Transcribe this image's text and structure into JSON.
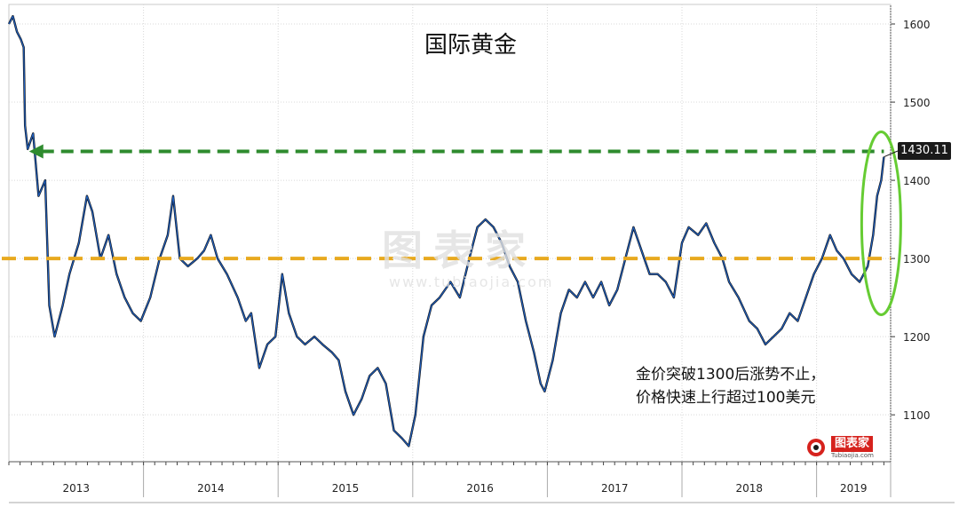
{
  "chart_data": {
    "type": "line",
    "title": "国际黄金",
    "y_ticks": [
      1100,
      1200,
      1300,
      1400,
      1500,
      1600
    ],
    "ylim": [
      1040,
      1625
    ],
    "x_year_labels": [
      "2013",
      "2014",
      "2015",
      "2016",
      "2017",
      "2018",
      "2019"
    ],
    "xlim": [
      2013.0,
      2019.55
    ],
    "grid": true,
    "last_value_label": "1430.11",
    "reference_lines": [
      {
        "name": "support",
        "value": 1300,
        "color": "#e8a91f",
        "style": "dashed"
      },
      {
        "name": "arrow",
        "value": 1437,
        "color": "#2e8b2e",
        "style": "dashed-arrow"
      }
    ],
    "highlight_color": "#66cc33",
    "series": [
      {
        "color": "#1f5fbf",
        "points": [
          [
            2013.0,
            1600
          ],
          [
            2013.03,
            1610
          ],
          [
            2013.06,
            1590
          ],
          [
            2013.09,
            1580
          ],
          [
            2013.11,
            1570
          ],
          [
            2013.12,
            1470
          ],
          [
            2013.14,
            1440
          ],
          [
            2013.18,
            1460
          ],
          [
            2013.22,
            1380
          ],
          [
            2013.27,
            1400
          ],
          [
            2013.3,
            1240
          ],
          [
            2013.34,
            1200
          ],
          [
            2013.4,
            1240
          ],
          [
            2013.45,
            1280
          ],
          [
            2013.52,
            1320
          ],
          [
            2013.58,
            1380
          ],
          [
            2013.62,
            1360
          ],
          [
            2013.68,
            1300
          ],
          [
            2013.74,
            1330
          ],
          [
            2013.8,
            1280
          ],
          [
            2013.86,
            1250
          ],
          [
            2013.92,
            1230
          ],
          [
            2013.98,
            1220
          ],
          [
            2014.05,
            1250
          ],
          [
            2014.12,
            1300
          ],
          [
            2014.18,
            1330
          ],
          [
            2014.22,
            1380
          ],
          [
            2014.27,
            1300
          ],
          [
            2014.33,
            1290
          ],
          [
            2014.4,
            1300
          ],
          [
            2014.45,
            1310
          ],
          [
            2014.5,
            1330
          ],
          [
            2014.55,
            1300
          ],
          [
            2014.62,
            1280
          ],
          [
            2014.7,
            1250
          ],
          [
            2014.76,
            1220
          ],
          [
            2014.8,
            1230
          ],
          [
            2014.86,
            1160
          ],
          [
            2014.92,
            1190
          ],
          [
            2014.98,
            1200
          ],
          [
            2015.03,
            1280
          ],
          [
            2015.08,
            1230
          ],
          [
            2015.14,
            1200
          ],
          [
            2015.2,
            1190
          ],
          [
            2015.27,
            1200
          ],
          [
            2015.33,
            1190
          ],
          [
            2015.4,
            1180
          ],
          [
            2015.45,
            1170
          ],
          [
            2015.5,
            1130
          ],
          [
            2015.56,
            1100
          ],
          [
            2015.62,
            1120
          ],
          [
            2015.68,
            1150
          ],
          [
            2015.74,
            1160
          ],
          [
            2015.8,
            1140
          ],
          [
            2015.86,
            1080
          ],
          [
            2015.92,
            1070
          ],
          [
            2015.97,
            1060
          ],
          [
            2016.02,
            1100
          ],
          [
            2016.08,
            1200
          ],
          [
            2016.14,
            1240
          ],
          [
            2016.2,
            1250
          ],
          [
            2016.28,
            1270
          ],
          [
            2016.35,
            1250
          ],
          [
            2016.42,
            1300
          ],
          [
            2016.48,
            1340
          ],
          [
            2016.54,
            1350
          ],
          [
            2016.6,
            1340
          ],
          [
            2016.66,
            1320
          ],
          [
            2016.72,
            1290
          ],
          [
            2016.78,
            1270
          ],
          [
            2016.84,
            1220
          ],
          [
            2016.9,
            1180
          ],
          [
            2016.95,
            1140
          ],
          [
            2016.98,
            1130
          ],
          [
            2017.04,
            1170
          ],
          [
            2017.1,
            1230
          ],
          [
            2017.16,
            1260
          ],
          [
            2017.22,
            1250
          ],
          [
            2017.28,
            1270
          ],
          [
            2017.34,
            1250
          ],
          [
            2017.4,
            1270
          ],
          [
            2017.46,
            1240
          ],
          [
            2017.52,
            1260
          ],
          [
            2017.58,
            1300
          ],
          [
            2017.64,
            1340
          ],
          [
            2017.7,
            1310
          ],
          [
            2017.76,
            1280
          ],
          [
            2017.82,
            1280
          ],
          [
            2017.88,
            1270
          ],
          [
            2017.94,
            1250
          ],
          [
            2018.0,
            1320
          ],
          [
            2018.05,
            1340
          ],
          [
            2018.12,
            1330
          ],
          [
            2018.18,
            1345
          ],
          [
            2018.24,
            1320
          ],
          [
            2018.3,
            1300
          ],
          [
            2018.35,
            1270
          ],
          [
            2018.42,
            1250
          ],
          [
            2018.5,
            1220
          ],
          [
            2018.56,
            1210
          ],
          [
            2018.62,
            1190
          ],
          [
            2018.68,
            1200
          ],
          [
            2018.74,
            1210
          ],
          [
            2018.8,
            1230
          ],
          [
            2018.86,
            1220
          ],
          [
            2018.92,
            1250
          ],
          [
            2018.98,
            1280
          ],
          [
            2019.04,
            1300
          ],
          [
            2019.1,
            1330
          ],
          [
            2019.15,
            1310
          ],
          [
            2019.2,
            1300
          ],
          [
            2019.26,
            1280
          ],
          [
            2019.32,
            1270
          ],
          [
            2019.38,
            1290
          ],
          [
            2019.42,
            1330
          ],
          [
            2019.45,
            1380
          ],
          [
            2019.48,
            1400
          ],
          [
            2019.5,
            1430
          ]
        ]
      }
    ],
    "annotation_lines": [
      "金价突破1300后涨势不止，",
      "价格快速上行超过100美元"
    ]
  },
  "watermark": {
    "main": "图表家",
    "url": "www.tubiaojia.com"
  },
  "logo": {
    "text": "图表家",
    "url": "Tubiaojia.com"
  }
}
